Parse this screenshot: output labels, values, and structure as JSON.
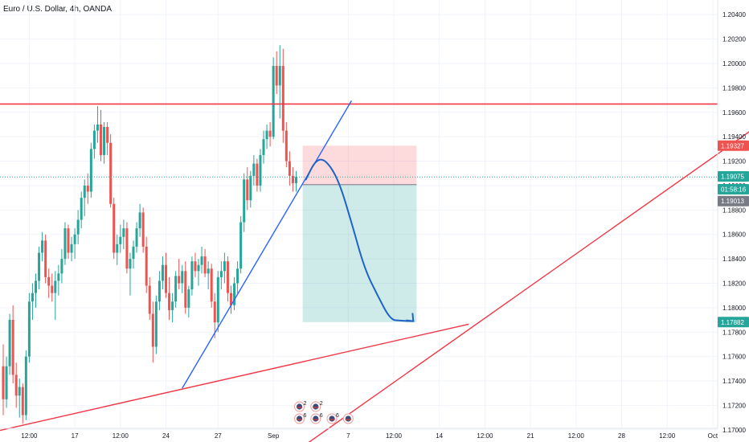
{
  "chart_data": {
    "type": "candlestick",
    "title": "Euro / U.S. Dollar, 4h, OANDA",
    "y_ticks": [
      "1.20400",
      "1.20200",
      "1.20000",
      "1.19800",
      "1.19600",
      "1.19400",
      "1.19200",
      "1.19000",
      "1.18800",
      "1.18600",
      "1.18400",
      "1.18200",
      "1.18000",
      "1.17800",
      "1.17600",
      "1.17400",
      "1.17200",
      "1.17000"
    ],
    "y_tick_values": [
      1.204,
      1.202,
      1.2,
      1.198,
      1.196,
      1.194,
      1.192,
      1.19,
      1.188,
      1.186,
      1.184,
      1.182,
      1.18,
      1.178,
      1.176,
      1.174,
      1.172,
      1.17
    ],
    "ylim": [
      1.169,
      1.2052
    ],
    "x_ticks": [
      {
        "label": "12:00",
        "bar": 8
      },
      {
        "label": "17",
        "bar": 22
      },
      {
        "label": "12:00",
        "bar": 36
      },
      {
        "label": "24",
        "bar": 50
      },
      {
        "label": "27",
        "bar": 66
      },
      {
        "label": "Sep",
        "bar": 83
      },
      {
        "label": "7",
        "bar": 106
      },
      {
        "label": "12:00",
        "bar": 120
      },
      {
        "label": "14",
        "bar": 134
      },
      {
        "label": "12:00",
        "bar": 148
      },
      {
        "label": "21",
        "bar": 162
      },
      {
        "label": "12:00",
        "bar": 176
      },
      {
        "label": "28",
        "bar": 190
      },
      {
        "label": "12:00",
        "bar": 204
      },
      {
        "label": "Oct",
        "bar": 218
      }
    ],
    "price_tags": [
      {
        "label": "1.19327",
        "value": 1.19327,
        "color": "#ef5350"
      },
      {
        "label": "1.19075",
        "value": 1.19075,
        "color": "#26a69a"
      },
      {
        "label": "01:58:16",
        "value": 1.1897,
        "color": "#26a69a"
      },
      {
        "label": "1.19013",
        "value": 1.18873,
        "color": "#787b86"
      },
      {
        "label": "1.17882",
        "value": 1.17882,
        "color": "#26a69a"
      }
    ],
    "ohlc": [
      [
        1.1752,
        1.177,
        1.1712,
        1.1725
      ],
      [
        1.1725,
        1.176,
        1.1718,
        1.1752
      ],
      [
        1.1752,
        1.1795,
        1.1745,
        1.179
      ],
      [
        1.179,
        1.1802,
        1.1738,
        1.1745
      ],
      [
        1.1745,
        1.1755,
        1.1718,
        1.1728
      ],
      [
        1.1728,
        1.1742,
        1.171,
        1.1735
      ],
      [
        1.1735,
        1.1738,
        1.1705,
        1.1712
      ],
      [
        1.1712,
        1.1765,
        1.1708,
        1.176
      ],
      [
        1.176,
        1.1812,
        1.1755,
        1.1805
      ],
      [
        1.1805,
        1.182,
        1.179,
        1.1812
      ],
      [
        1.1812,
        1.1828,
        1.18,
        1.1822
      ],
      [
        1.1822,
        1.185,
        1.1815,
        1.1845
      ],
      [
        1.1845,
        1.1862,
        1.1838,
        1.1855
      ],
      [
        1.1855,
        1.186,
        1.182,
        1.1825
      ],
      [
        1.1825,
        1.1832,
        1.1808,
        1.1818
      ],
      [
        1.1818,
        1.1828,
        1.1805,
        1.1812
      ],
      [
        1.1812,
        1.183,
        1.179,
        1.1822
      ],
      [
        1.1822,
        1.1835,
        1.181,
        1.1828
      ],
      [
        1.1828,
        1.1848,
        1.182,
        1.184
      ],
      [
        1.184,
        1.187,
        1.1835,
        1.1865
      ],
      [
        1.1865,
        1.1868,
        1.184,
        1.1845
      ],
      [
        1.1845,
        1.1858,
        1.1838,
        1.1852
      ],
      [
        1.1852,
        1.1865,
        1.184,
        1.186
      ],
      [
        1.186,
        1.188,
        1.1852,
        1.1872
      ],
      [
        1.1872,
        1.1895,
        1.1865,
        1.189
      ],
      [
        1.189,
        1.1905,
        1.1875,
        1.19
      ],
      [
        1.19,
        1.191,
        1.1885,
        1.1895
      ],
      [
        1.1895,
        1.1935,
        1.189,
        1.193
      ],
      [
        1.193,
        1.195,
        1.1922,
        1.1945
      ],
      [
        1.1945,
        1.1965,
        1.1935,
        1.195
      ],
      [
        1.195,
        1.1962,
        1.192,
        1.1925
      ],
      [
        1.1925,
        1.1952,
        1.1918,
        1.1948
      ],
      [
        1.1948,
        1.1952,
        1.1925,
        1.1935
      ],
      [
        1.1935,
        1.1942,
        1.1882,
        1.1885
      ],
      [
        1.1885,
        1.189,
        1.184,
        1.1845
      ],
      [
        1.1845,
        1.186,
        1.1835,
        1.1852
      ],
      [
        1.1852,
        1.1868,
        1.1845,
        1.1858
      ],
      [
        1.1858,
        1.1872,
        1.1848,
        1.1865
      ],
      [
        1.1865,
        1.187,
        1.1828,
        1.1832
      ],
      [
        1.1832,
        1.1845,
        1.181,
        1.184
      ],
      [
        1.184,
        1.1855,
        1.1832,
        1.185
      ],
      [
        1.185,
        1.187,
        1.1845,
        1.1865
      ],
      [
        1.1865,
        1.1885,
        1.1858,
        1.1878
      ],
      [
        1.1878,
        1.1882,
        1.1845,
        1.185
      ],
      [
        1.185,
        1.1858,
        1.1812,
        1.1818
      ],
      [
        1.1818,
        1.1825,
        1.179,
        1.1795
      ],
      [
        1.1795,
        1.1805,
        1.1755,
        1.1768
      ],
      [
        1.1768,
        1.181,
        1.1762,
        1.1805
      ],
      [
        1.1805,
        1.183,
        1.1798,
        1.1822
      ],
      [
        1.1822,
        1.1842,
        1.1815,
        1.1835
      ],
      [
        1.1835,
        1.1845,
        1.1808,
        1.1812
      ],
      [
        1.1812,
        1.1825,
        1.179,
        1.1798
      ],
      [
        1.1798,
        1.1812,
        1.1788,
        1.1805
      ],
      [
        1.1805,
        1.183,
        1.18,
        1.1826
      ],
      [
        1.1826,
        1.184,
        1.1815,
        1.182
      ],
      [
        1.182,
        1.1835,
        1.1812,
        1.183
      ],
      [
        1.183,
        1.1838,
        1.1795,
        1.18
      ],
      [
        1.18,
        1.1818,
        1.1792,
        1.1815
      ],
      [
        1.1815,
        1.1842,
        1.181,
        1.1838
      ],
      [
        1.1838,
        1.1845,
        1.1825,
        1.183
      ],
      [
        1.183,
        1.184,
        1.1818,
        1.1835
      ],
      [
        1.1835,
        1.185,
        1.1828,
        1.1842
      ],
      [
        1.1842,
        1.1848,
        1.1825,
        1.1828
      ],
      [
        1.1828,
        1.1838,
        1.1815,
        1.1832
      ],
      [
        1.1832,
        1.1836,
        1.18,
        1.1805
      ],
      [
        1.1805,
        1.1812,
        1.1775,
        1.1788
      ],
      [
        1.1788,
        1.183,
        1.178,
        1.1825
      ],
      [
        1.1825,
        1.1838,
        1.1815,
        1.183
      ],
      [
        1.183,
        1.1845,
        1.182,
        1.1838
      ],
      [
        1.1838,
        1.1842,
        1.1805,
        1.1812
      ],
      [
        1.1812,
        1.1818,
        1.1795,
        1.1802
      ],
      [
        1.1802,
        1.1825,
        1.1798,
        1.182
      ],
      [
        1.182,
        1.1838,
        1.1812,
        1.1832
      ],
      [
        1.1832,
        1.1875,
        1.1828,
        1.187
      ],
      [
        1.187,
        1.191,
        1.1862,
        1.1905
      ],
      [
        1.1905,
        1.1915,
        1.188,
        1.1888
      ],
      [
        1.1888,
        1.1912,
        1.1882,
        1.1908
      ],
      [
        1.1908,
        1.1925,
        1.19,
        1.1918
      ],
      [
        1.1918,
        1.1922,
        1.1895,
        1.19
      ],
      [
        1.19,
        1.193,
        1.1895,
        1.1925
      ],
      [
        1.1925,
        1.1945,
        1.1918,
        1.1938
      ],
      [
        1.1938,
        1.195,
        1.193,
        1.1945
      ],
      [
        1.1945,
        1.1952,
        1.1932,
        1.194
      ],
      [
        1.194,
        1.2005,
        1.1938,
        1.1998
      ],
      [
        1.1998,
        1.201,
        1.1975,
        1.1982
      ],
      [
        1.1982,
        1.2015,
        1.1955,
        1.1998
      ],
      [
        1.1998,
        1.2012,
        1.1935,
        1.1945
      ],
      [
        1.1945,
        1.1952,
        1.1915,
        1.192
      ],
      [
        1.192,
        1.1928,
        1.19,
        1.1908
      ],
      [
        1.1908,
        1.1915,
        1.1895,
        1.1902
      ],
      [
        1.1902,
        1.1912,
        1.1895,
        1.1907
      ]
    ],
    "horizontal_line": {
      "y": 1.19668,
      "color": "#f23645"
    },
    "trendlines": [
      {
        "from": [
          -1,
          1.16995
        ],
        "to": [
          143,
          1.17865
        ],
        "color": "#f23645"
      },
      {
        "from": [
          85,
          1.1673
        ],
        "to": [
          231,
          1.19475
        ],
        "color": "#f23645"
      },
      {
        "from": [
          55,
          1.1734
        ],
        "to": [
          107,
          1.19695
        ],
        "color": "#2962ff"
      }
    ],
    "short_position": {
      "from_bar": 92,
      "to_bar": 127,
      "stop": 1.19327,
      "entry": 1.19008,
      "target": 1.17882,
      "stop_fill": "rgba(242,54,69,0.18)",
      "target_fill": "rgba(38,166,154,0.22)"
    },
    "forecast_curve": {
      "color": "#1e63c6",
      "points": [
        [
          93,
          1.1905
        ],
        [
          96,
          1.1921
        ],
        [
          99,
          1.19215
        ],
        [
          103,
          1.1905
        ],
        [
          107,
          1.187
        ],
        [
          111,
          1.1832
        ],
        [
          115,
          1.181
        ],
        [
          119,
          1.179
        ],
        [
          122,
          1.17895
        ],
        [
          124.5,
          1.1789
        ],
        [
          126,
          1.1789
        ]
      ]
    },
    "events": [
      {
        "bar": 91,
        "count": "2",
        "row": 1
      },
      {
        "bar": 96,
        "count": "2",
        "row": 1
      },
      {
        "bar": 91,
        "count": "6",
        "row": 2
      },
      {
        "bar": 96,
        "count": "6",
        "row": 2
      },
      {
        "bar": 101,
        "count": "6",
        "row": 2
      },
      {
        "bar": 106,
        "count": "",
        "row": 2
      }
    ],
    "colors": {
      "up": "#26a69a",
      "down": "#ef5350",
      "grid": "#f0f3fa",
      "axis_text": "#131722"
    },
    "grid": true
  }
}
